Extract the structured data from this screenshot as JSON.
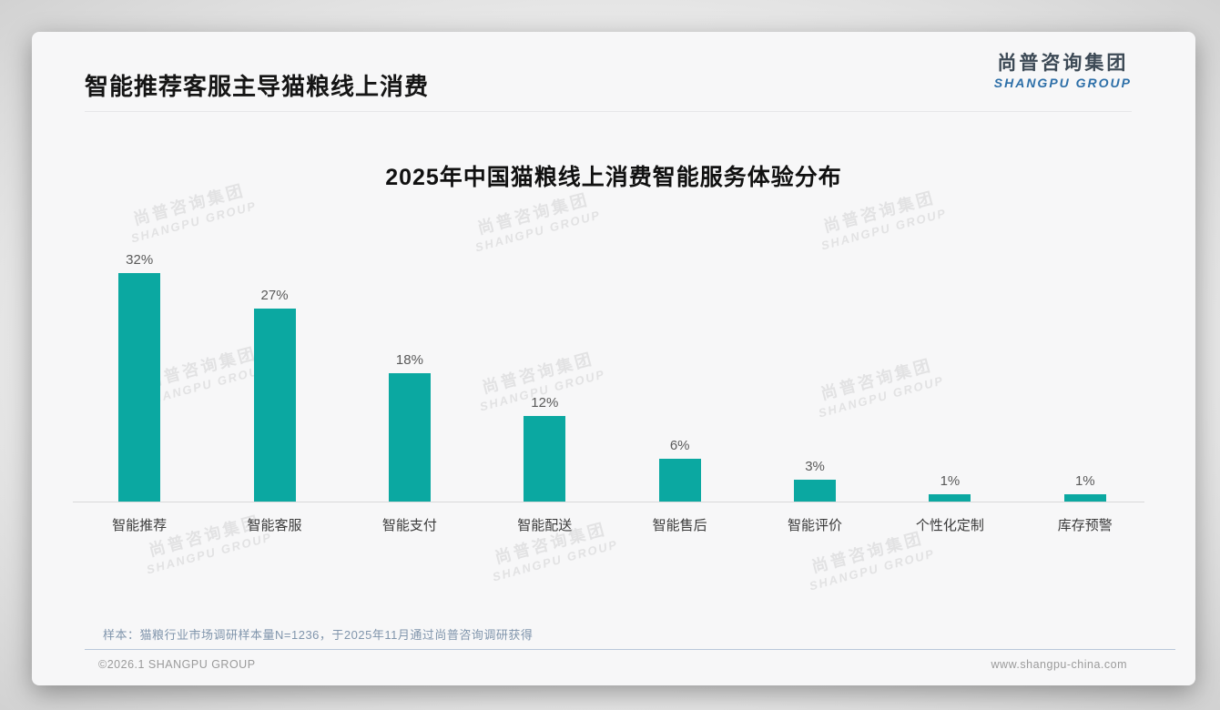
{
  "page": {
    "title": "智能推荐客服主导猫粮线上消费",
    "logo": {
      "cn": "尚普咨询集团",
      "en": "SHANGPU GROUP"
    },
    "watermark": {
      "line1": "尚普咨询集团",
      "line2": "SHANGPU GROUP"
    },
    "note": "样本：猫粮行业市场调研样本量N=1236，于2025年11月通过尚普咨询调研获得",
    "footer": {
      "copyright": "©2026.1 SHANGPU GROUP",
      "website": "www.shangpu-china.com"
    }
  },
  "colors": {
    "bar": "#0BA8A1",
    "logo_cn": "#3D4A56",
    "logo_en": "#2D6FA8",
    "note_text": "#8095AC",
    "footer_text": "#9B9B9B",
    "watermark": "#E2E2E3"
  },
  "chart_data": {
    "type": "bar",
    "title": "2025年中国猫粮线上消费智能服务体验分布",
    "categories": [
      "智能推荐",
      "智能客服",
      "智能支付",
      "智能配送",
      "智能售后",
      "智能评价",
      "个性化定制",
      "库存预警"
    ],
    "values": [
      32,
      27,
      18,
      12,
      6,
      3,
      1,
      1
    ],
    "data_labels": [
      "32%",
      "27%",
      "18%",
      "12%",
      "6%",
      "3%",
      "1%",
      "1%"
    ],
    "unit": "%",
    "xlabel": "",
    "ylabel": "",
    "ylim": [
      0,
      35
    ],
    "grid": false,
    "legend": "none",
    "bar_color": "#0BA8A1"
  }
}
